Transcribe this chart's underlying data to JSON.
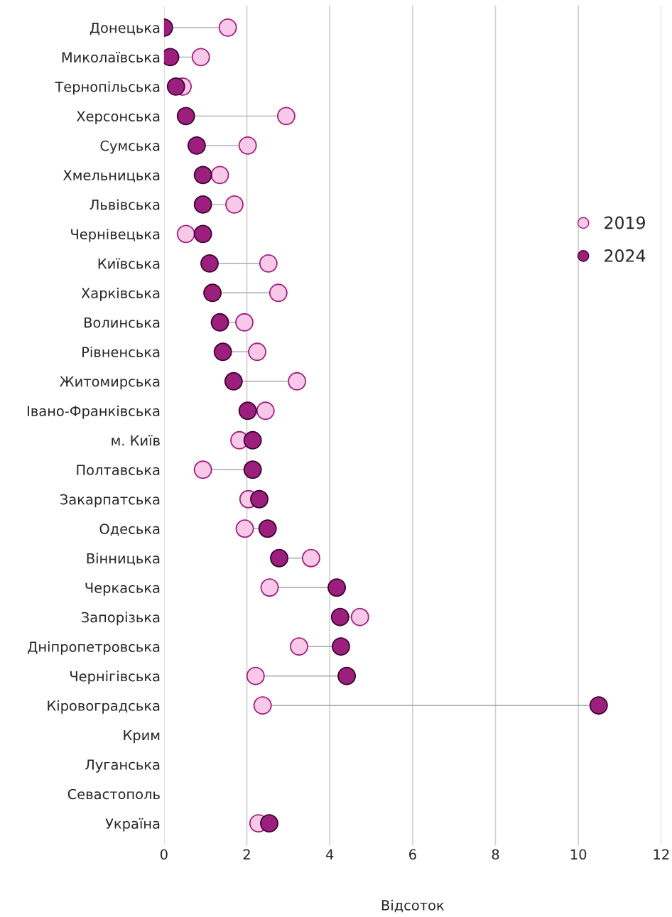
{
  "chart_data": {
    "type": "scatter",
    "orientation": "horizontal",
    "xlabel": "Відсоток",
    "categories": [
      "Донецька",
      "Миколаївська",
      "Тернопільська",
      "Херсонська",
      "Сумська",
      "Хмельницька",
      "Львівська",
      "Чернівецька",
      "Київська",
      "Харківська",
      "Волинська",
      "Рівненська",
      "Житомирська",
      "Івано-Франківська",
      "м. Київ",
      "Полтавська",
      "Закарпатська",
      "Одеська",
      "Вінницька",
      "Черкаська",
      "Запорізька",
      "Дніпропетровська",
      "Чернігівська",
      "Кіровоградська",
      "Крим",
      "Луганська",
      "Севастополь",
      "Україна"
    ],
    "series": [
      {
        "name": "2019",
        "color": "#f7c8e8",
        "values": [
          1.54,
          0.89,
          0.45,
          2.95,
          2.02,
          1.35,
          1.7,
          0.53,
          2.52,
          2.76,
          1.94,
          2.25,
          3.21,
          2.45,
          1.82,
          0.94,
          2.04,
          1.95,
          3.55,
          2.55,
          4.73,
          3.26,
          2.21,
          2.38,
          null,
          null,
          null,
          2.28
        ]
      },
      {
        "name": "2024",
        "color": "#9c1f7e",
        "values": [
          0,
          0.15,
          0.29,
          0.53,
          0.79,
          0.94,
          0.94,
          0.94,
          1.1,
          1.17,
          1.35,
          1.42,
          1.68,
          2.02,
          2.14,
          2.14,
          2.3,
          2.5,
          2.78,
          4.17,
          4.25,
          4.27,
          4.41,
          10.49,
          null,
          null,
          null,
          2.54
        ]
      }
    ],
    "xlim": [
      0,
      12
    ],
    "xticks": [
      0,
      2,
      4,
      6,
      8,
      10,
      12
    ],
    "grid": "x",
    "legend": "right",
    "marker": "circle"
  }
}
